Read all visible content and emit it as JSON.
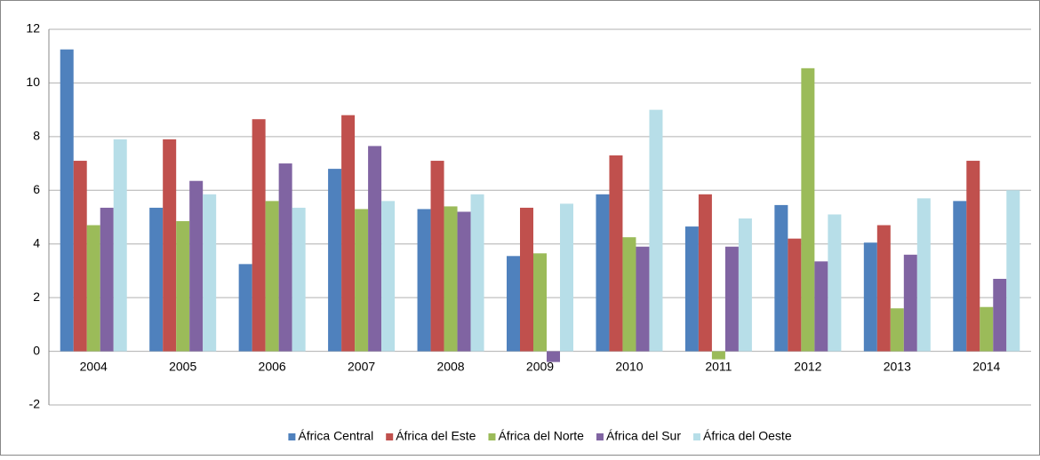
{
  "chart_data": {
    "type": "bar",
    "categories": [
      "2004",
      "2005",
      "2006",
      "2007",
      "2008",
      "2009",
      "2010",
      "2011",
      "2012",
      "2013",
      "2014"
    ],
    "series": [
      {
        "name": "África Central",
        "color": "#4f81bd",
        "values": [
          11.25,
          5.35,
          3.25,
          6.8,
          5.3,
          3.55,
          5.85,
          4.65,
          5.45,
          4.05,
          5.6
        ]
      },
      {
        "name": "África del Este",
        "color": "#c0504d",
        "values": [
          7.1,
          7.9,
          8.65,
          8.8,
          7.1,
          5.35,
          7.3,
          5.85,
          4.2,
          4.7,
          7.1
        ]
      },
      {
        "name": "África del Norte",
        "color": "#9bbb59",
        "values": [
          4.7,
          4.85,
          5.6,
          5.3,
          5.4,
          3.65,
          4.25,
          -0.3,
          10.55,
          1.6,
          1.65
        ]
      },
      {
        "name": "África del Sur",
        "color": "#8064a2",
        "values": [
          5.35,
          6.35,
          7.0,
          7.65,
          5.2,
          -0.4,
          3.9,
          3.9,
          3.35,
          3.6,
          2.7
        ]
      },
      {
        "name": "África del Oeste",
        "color": "#b7dee8",
        "values": [
          7.9,
          5.85,
          5.35,
          5.6,
          5.85,
          5.5,
          9.0,
          4.95,
          5.1,
          5.7,
          6.0
        ]
      }
    ],
    "ylim": [
      -2,
      12
    ],
    "yticks": [
      -2,
      0,
      2,
      4,
      6,
      8,
      10,
      12
    ],
    "grid": true,
    "legend": "bottom"
  }
}
